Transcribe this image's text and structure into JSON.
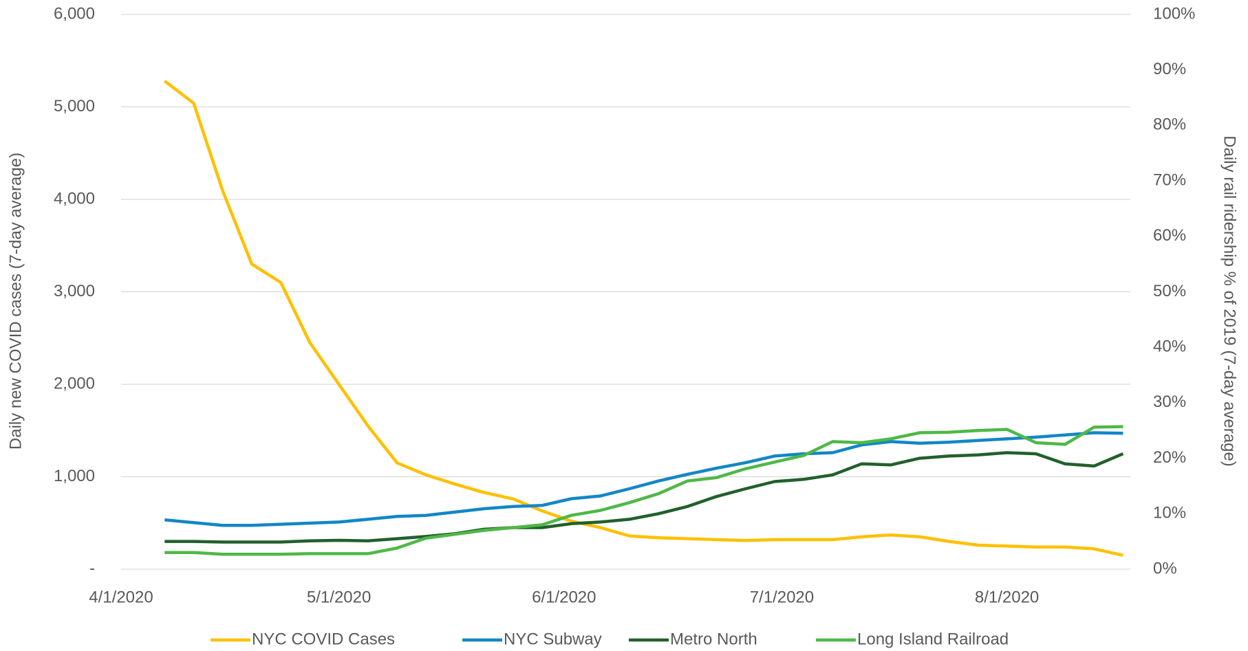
{
  "chart_data": {
    "type": "line",
    "y_label": "Daily new COVID cases (7-day average)",
    "y2_label": "Daily rail ridership  % of 2019 (7-day average)",
    "x": [
      "4/7/2020",
      "4/11/2020",
      "4/15/2020",
      "4/19/2020",
      "4/23/2020",
      "4/27/2020",
      "5/1/2020",
      "5/5/2020",
      "5/9/2020",
      "5/13/2020",
      "5/17/2020",
      "5/21/2020",
      "5/25/2020",
      "5/29/2020",
      "6/2/2020",
      "6/6/2020",
      "6/10/2020",
      "6/14/2020",
      "6/18/2020",
      "6/22/2020",
      "6/26/2020",
      "6/30/2020",
      "7/4/2020",
      "7/8/2020",
      "7/12/2020",
      "7/16/2020",
      "7/20/2020",
      "7/24/2020",
      "7/28/2020",
      "8/1/2020",
      "8/5/2020",
      "8/9/2020",
      "8/13/2020",
      "8/17/2020"
    ],
    "xlim": [
      "4/1/2020",
      "8/18/2020"
    ],
    "xticks": [
      "4/1/2020",
      "5/1/2020",
      "6/1/2020",
      "7/1/2020",
      "8/1/2020"
    ],
    "ylim": [
      0,
      6000
    ],
    "yticks": [
      {
        "value": 0,
        "label": "-"
      },
      {
        "value": 1000,
        "label": "1,000"
      },
      {
        "value": 2000,
        "label": "2,000"
      },
      {
        "value": 3000,
        "label": "3,000"
      },
      {
        "value": 4000,
        "label": "4,000"
      },
      {
        "value": 5000,
        "label": "5,000"
      },
      {
        "value": 6000,
        "label": "6,000"
      }
    ],
    "y2lim": [
      0,
      100
    ],
    "y2ticks": [
      {
        "value": 0,
        "label": "0%"
      },
      {
        "value": 10,
        "label": "10%"
      },
      {
        "value": 20,
        "label": "20%"
      },
      {
        "value": 30,
        "label": "30%"
      },
      {
        "value": 40,
        "label": "40%"
      },
      {
        "value": 50,
        "label": "50%"
      },
      {
        "value": 60,
        "label": "60%"
      },
      {
        "value": 70,
        "label": "70%"
      },
      {
        "value": 80,
        "label": "80%"
      },
      {
        "value": 90,
        "label": "90%"
      },
      {
        "value": 100,
        "label": "100%"
      }
    ],
    "grid": true,
    "legend": "bottom",
    "series": [
      {
        "name": "NYC COVID Cases",
        "color": "#ffc000",
        "axis": "y",
        "values": [
          5280,
          5040,
          4090,
          3300,
          3100,
          2450,
          2000,
          1550,
          1150,
          1020,
          920,
          830,
          760,
          630,
          520,
          450,
          360,
          340,
          330,
          320,
          310,
          320,
          320,
          320,
          350,
          370,
          350,
          300,
          260,
          250,
          240,
          240,
          220,
          150
        ]
      },
      {
        "name": "NYC Subway",
        "color": "#1287c6",
        "axis": "y2",
        "values": [
          8.9,
          8.4,
          7.9,
          7.9,
          8.1,
          8.3,
          8.5,
          9.0,
          9.5,
          9.7,
          10.3,
          10.9,
          11.3,
          11.5,
          12.7,
          13.2,
          14.5,
          15.9,
          17.1,
          18.2,
          19.2,
          20.4,
          20.8,
          21.0,
          22.4,
          23.0,
          22.7,
          22.9,
          23.2,
          23.5,
          23.8,
          24.2,
          24.6,
          24.5
        ]
      },
      {
        "name": "Metro North",
        "color": "#22602b",
        "axis": "y2",
        "values": [
          5.0,
          5.0,
          4.9,
          4.9,
          4.9,
          5.1,
          5.2,
          5.1,
          5.5,
          5.9,
          6.4,
          7.2,
          7.5,
          7.5,
          8.2,
          8.5,
          9.0,
          10.0,
          11.3,
          13.1,
          14.5,
          15.8,
          16.2,
          17.0,
          19.0,
          18.8,
          20.0,
          20.4,
          20.6,
          21.0,
          20.8,
          19.0,
          18.6,
          20.8
        ]
      },
      {
        "name": "Long Island Railroad",
        "color": "#4fb848",
        "axis": "y2",
        "values": [
          3.0,
          3.0,
          2.7,
          2.7,
          2.7,
          2.8,
          2.8,
          2.8,
          3.8,
          5.6,
          6.3,
          7.0,
          7.5,
          8.0,
          9.7,
          10.6,
          12.0,
          13.6,
          15.9,
          16.5,
          18.1,
          19.3,
          20.5,
          23.0,
          22.8,
          23.5,
          24.6,
          24.7,
          25.0,
          25.2,
          22.8,
          22.5,
          25.6,
          25.7
        ]
      }
    ]
  }
}
